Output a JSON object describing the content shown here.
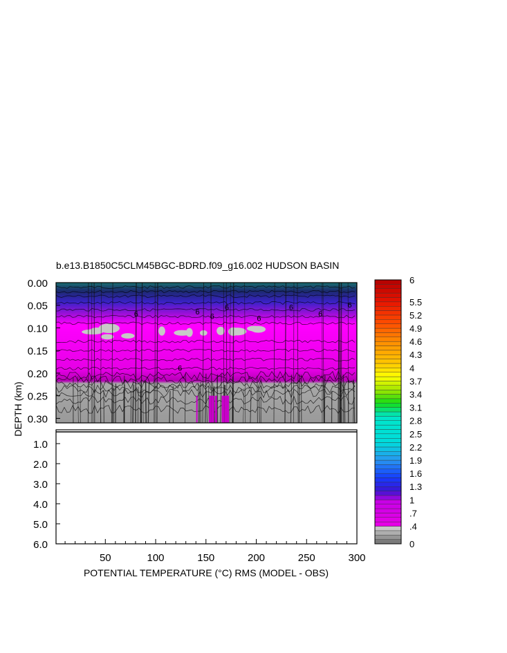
{
  "chart_data": {
    "type": "heatmap",
    "title": "b.e13.B1850C5CLM45BGC-BDRD.f09_g16.002 HUDSON BASIN",
    "xlabel": "POTENTIAL TEMPERATURE (°C) RMS (MODEL - OBS)",
    "ylabel": "DEPTH (km)",
    "xlim": [
      1,
      300
    ],
    "x_ticks": [
      "50",
      "100",
      "150",
      "200",
      "250",
      "300"
    ],
    "x_tick_values": [
      50,
      100,
      150,
      200,
      250,
      300
    ],
    "upper_panel": {
      "ylim": [
        0.0,
        0.31
      ],
      "y_ticks": [
        "0.00",
        "0.05",
        "0.10",
        "0.15",
        "0.20",
        "0.25",
        "0.30"
      ],
      "y_tick_values": [
        0.0,
        0.05,
        0.1,
        0.15,
        0.2,
        0.25,
        0.3
      ]
    },
    "lower_panel": {
      "ylim": [
        0.31,
        6.0
      ],
      "y_ticks": [
        "1.0",
        "2.0",
        "3.0",
        "4.0",
        "5.0",
        "6.0"
      ],
      "y_tick_values": [
        1.0,
        2.0,
        3.0,
        4.0,
        5.0,
        6.0
      ]
    },
    "contour_labels": [
      "6",
      "6",
      "6",
      "6",
      "6",
      "6",
      "6",
      "6",
      "6"
    ],
    "depth_bands": [
      {
        "top": 0.0,
        "bottom": 0.03,
        "value": 1.9
      },
      {
        "top": 0.03,
        "bottom": 0.07,
        "value": 1.2
      },
      {
        "top": 0.07,
        "bottom": 0.2,
        "value": 0.8
      },
      {
        "top": 0.2,
        "bottom": 0.31,
        "value": 0.35
      }
    ],
    "colorbar": {
      "labels": [
        "6",
        "5.5",
        "5.2",
        "4.9",
        "4.6",
        "4.3",
        "4",
        "3.7",
        "3.4",
        "3.1",
        "2.8",
        "2.5",
        "2.2",
        "1.9",
        "1.6",
        "1.3",
        "1",
        ".7",
        ".4",
        "0"
      ],
      "label_values": [
        6,
        5.5,
        5.2,
        4.9,
        4.6,
        4.3,
        4,
        3.7,
        3.4,
        3.1,
        2.8,
        2.5,
        2.2,
        1.9,
        1.6,
        1.3,
        1,
        0.7,
        0.4,
        0
      ],
      "min": 0,
      "max": 6,
      "colors": {
        "gray": "#9a9a9a",
        "magenta": "#ff00ff",
        "purple": "#a000c8",
        "blue": "#1e3cff",
        "cyan": "#00e6e6",
        "green": "#14dc14",
        "yellow": "#ffff00",
        "orange": "#ff9600",
        "red": "#c80000"
      }
    }
  }
}
